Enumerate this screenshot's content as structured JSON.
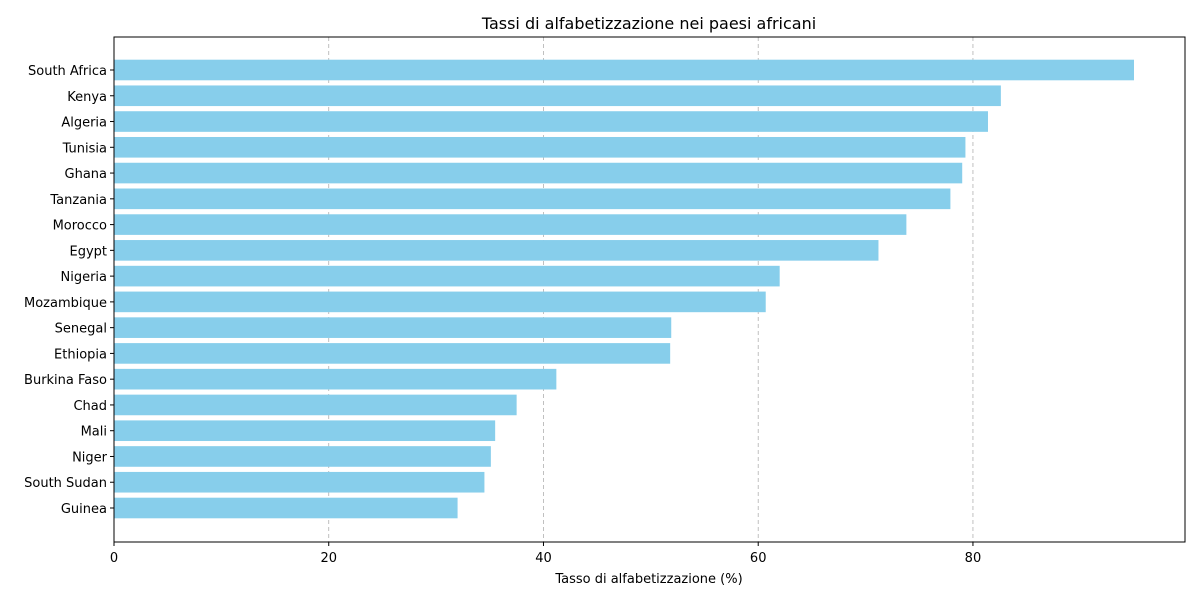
{
  "chart_data": {
    "type": "bar",
    "orientation": "horizontal",
    "title": "Tassi di alfabetizzazione nei paesi africani",
    "xlabel": "Tasso di alfabetizzazione (%)",
    "ylabel": "",
    "categories": [
      "South Africa",
      "Kenya",
      "Algeria",
      "Tunisia",
      "Ghana",
      "Tanzania",
      "Morocco",
      "Egypt",
      "Nigeria",
      "Mozambique",
      "Senegal",
      "Ethiopia",
      "Burkina Faso",
      "Chad",
      "Mali",
      "Niger",
      "South Sudan",
      "Guinea"
    ],
    "values": [
      95.0,
      82.6,
      81.4,
      79.3,
      79.0,
      77.9,
      73.8,
      71.2,
      62.0,
      60.7,
      51.9,
      51.8,
      41.2,
      37.5,
      35.5,
      35.1,
      34.5,
      32.0
    ],
    "xlim": [
      0,
      99.75
    ],
    "xticks": [
      0,
      20,
      40,
      60,
      80
    ],
    "grid": {
      "x": true,
      "y": false,
      "style": "dashed"
    },
    "bar_color": "#87ceeb"
  }
}
